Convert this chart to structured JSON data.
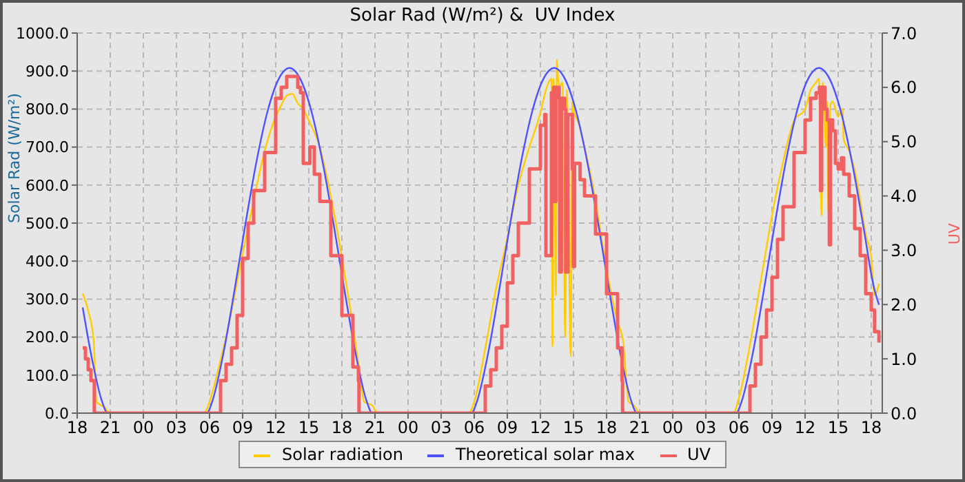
{
  "chart_data": {
    "type": "line",
    "title": "Solar Rad (W/m²) &  UV Index",
    "ylabel": "Solar Rad (W/m²)",
    "y2label": "UV",
    "xlim": [
      18,
      91
    ],
    "xticks": [
      {
        "value": 18,
        "label": "18"
      },
      {
        "value": 21,
        "label": "21"
      },
      {
        "value": 24,
        "label": "00"
      },
      {
        "value": 27,
        "label": "03"
      },
      {
        "value": 30,
        "label": "06"
      },
      {
        "value": 33,
        "label": "09"
      },
      {
        "value": 36,
        "label": "12"
      },
      {
        "value": 39,
        "label": "15"
      },
      {
        "value": 42,
        "label": "18"
      },
      {
        "value": 45,
        "label": "21"
      },
      {
        "value": 48,
        "label": "00"
      },
      {
        "value": 51,
        "label": "03"
      },
      {
        "value": 54,
        "label": "06"
      },
      {
        "value": 57,
        "label": "09"
      },
      {
        "value": 60,
        "label": "12"
      },
      {
        "value": 63,
        "label": "15"
      },
      {
        "value": 66,
        "label": "18"
      },
      {
        "value": 69,
        "label": "21"
      },
      {
        "value": 72,
        "label": "00"
      },
      {
        "value": 75,
        "label": "03"
      },
      {
        "value": 78,
        "label": "06"
      },
      {
        "value": 81,
        "label": "09"
      },
      {
        "value": 84,
        "label": "12"
      },
      {
        "value": 87,
        "label": "15"
      },
      {
        "value": 90,
        "label": "18"
      }
    ],
    "ylim": [
      0,
      1000
    ],
    "yticks": [
      {
        "value": 0,
        "label": "0.0"
      },
      {
        "value": 100,
        "label": "100.0"
      },
      {
        "value": 200,
        "label": "200.0"
      },
      {
        "value": 300,
        "label": "300.0"
      },
      {
        "value": 400,
        "label": "400.0"
      },
      {
        "value": 500,
        "label": "500.0"
      },
      {
        "value": 600,
        "label": "600.0"
      },
      {
        "value": 700,
        "label": "700.0"
      },
      {
        "value": 800,
        "label": "800.0"
      },
      {
        "value": 900,
        "label": "900.0"
      },
      {
        "value": 1000,
        "label": "1000.0"
      }
    ],
    "y2lim": [
      0,
      7
    ],
    "y2ticks": [
      {
        "value": 0,
        "label": "0.0"
      },
      {
        "value": 1,
        "label": "1.0"
      },
      {
        "value": 2,
        "label": "2.0"
      },
      {
        "value": 3,
        "label": "3.0"
      },
      {
        "value": 4,
        "label": "4.0"
      },
      {
        "value": 5,
        "label": "5.0"
      },
      {
        "value": 6,
        "label": "6.0"
      },
      {
        "value": 7,
        "label": "7.0"
      }
    ],
    "grid": true,
    "legend": "bottom",
    "series": [
      {
        "name": "Solar radiation",
        "color": "#ffcc00",
        "x": [
          18.5,
          19.0,
          19.5,
          19.75,
          20.5,
          21.0,
          29.5,
          30,
          30.5,
          31,
          31.5,
          32,
          33,
          34,
          35,
          36,
          36.5,
          37,
          37.5,
          38,
          38.5,
          39,
          40,
          41,
          42,
          43,
          43.75,
          44,
          44.75,
          45.25,
          53.5,
          54,
          55,
          56,
          57,
          58,
          59,
          60,
          60.5,
          60.75,
          61.0,
          61.1,
          61.2,
          61.4,
          61.5,
          61.6,
          61.8,
          62.0,
          62.25,
          62.4,
          62.75,
          62.9,
          63,
          63.5,
          64,
          65,
          66,
          67,
          67.5,
          68,
          68.5,
          69,
          77.5,
          78,
          79,
          80,
          81,
          82,
          83,
          84,
          84.5,
          85,
          85.25,
          85.5,
          85.6,
          85.9,
          86.0,
          86.1,
          86.3,
          86.5,
          87,
          87.4,
          87.5,
          88,
          88.5,
          89,
          89.5,
          90,
          90.3,
          90.7
        ],
        "values": [
          315,
          270,
          190,
          30,
          15,
          0,
          0,
          30,
          80,
          140,
          200,
          270,
          420,
          560,
          690,
          780,
          810,
          835,
          840,
          815,
          800,
          770,
          700,
          570,
          410,
          230,
          80,
          30,
          20,
          0,
          0,
          30,
          170,
          330,
          460,
          600,
          700,
          790,
          850,
          870,
          880,
          175,
          880,
          310,
          930,
          880,
          860,
          870,
          200,
          850,
          150,
          820,
          800,
          760,
          700,
          560,
          380,
          240,
          190,
          30,
          20,
          0,
          0,
          40,
          180,
          350,
          520,
          660,
          770,
          800,
          850,
          870,
          880,
          520,
          870,
          700,
          820,
          530,
          810,
          820,
          780,
          800,
          720,
          690,
          640,
          560,
          470,
          410,
          310,
          340
        ]
      },
      {
        "name": "Theoretical solar max",
        "color": "#5050ff",
        "x": [
          18.5,
          19.25,
          20.25,
          20.75,
          29.75,
          30.25,
          31.25,
          32.25,
          33.25,
          34.25,
          35.25,
          36.25,
          37.25,
          38.25,
          39.25,
          40.25,
          41.25,
          42.25,
          43.25,
          44.25,
          44.75,
          53.75,
          54.25,
          55.25,
          56.25,
          57.25,
          58.25,
          59.25,
          60.25,
          61.25,
          62.25,
          63.25,
          64.25,
          65.25,
          66.25,
          67.25,
          68.25,
          68.75,
          77.75,
          78.25,
          79.25,
          80.25,
          81.25,
          82.25,
          83.25,
          84.25,
          85.25,
          86.25,
          87.25,
          88.25,
          89.25,
          90.25,
          90.7
        ],
        "values": [
          278,
          156,
          31,
          0,
          0,
          31,
          156,
          321,
          497,
          661,
          793,
          878,
          908,
          878,
          793,
          661,
          497,
          321,
          156,
          31,
          0,
          0,
          31,
          156,
          321,
          497,
          661,
          793,
          878,
          908,
          878,
          793,
          661,
          497,
          321,
          156,
          31,
          0,
          0,
          31,
          156,
          321,
          497,
          661,
          793,
          878,
          908,
          878,
          793,
          661,
          497,
          330,
          285
        ]
      },
      {
        "name": "UV",
        "color": "#f06060",
        "type": "step",
        "axis": "y2",
        "x": [
          18.5,
          18.75,
          19.0,
          19.25,
          19.5,
          19.55,
          30.95,
          31,
          31.5,
          32,
          32.5,
          33,
          33.5,
          34,
          35,
          36,
          36.5,
          37,
          37.5,
          38,
          38.25,
          38.5,
          39,
          39.1,
          39.25,
          39.5,
          40,
          41,
          42,
          43,
          43.5,
          43.55,
          54.95,
          55,
          55.5,
          56,
          56.5,
          57,
          57.5,
          58,
          59,
          60,
          60.4,
          60.5,
          60.9,
          61.0,
          61.2,
          61.25,
          61.4,
          61.7,
          61.75,
          61.9,
          62.2,
          62.3,
          62.5,
          62.9,
          63.0,
          63.1,
          63.4,
          63.6,
          64,
          65,
          66,
          67,
          67.4,
          67.45,
          78.95,
          79,
          79.5,
          80,
          80.5,
          81,
          81.5,
          82,
          83,
          84,
          84.5,
          85,
          85.3,
          85.4,
          85.5,
          85.8,
          86,
          86.2,
          86.3,
          86.5,
          86.75,
          87,
          87.3,
          87.5,
          88,
          88.5,
          89,
          89.5,
          90,
          90.3,
          90.7
        ],
        "values": [
          1.2,
          1.0,
          0.8,
          0.6,
          0.6,
          0,
          0,
          0.6,
          0.9,
          1.2,
          1.8,
          2.85,
          3.5,
          4.1,
          4.8,
          5.8,
          6.0,
          6.2,
          6.2,
          6.0,
          5.9,
          4.6,
          4.6,
          4.9,
          4.9,
          4.4,
          3.9,
          2.9,
          1.8,
          0.85,
          0.6,
          0,
          0,
          0.5,
          0.8,
          1.2,
          1.6,
          2.4,
          2.9,
          3.5,
          4.5,
          5.3,
          5.5,
          2.9,
          2.9,
          5.9,
          6.0,
          3.9,
          6.0,
          5.8,
          2.6,
          5.8,
          5.6,
          2.6,
          5.5,
          4.5,
          2.7,
          4.6,
          4.6,
          4.3,
          4.0,
          3.3,
          2.2,
          1.2,
          0.6,
          0,
          0,
          0.5,
          0.9,
          1.4,
          1.9,
          2.5,
          3.2,
          3.8,
          4.8,
          5.4,
          5.8,
          5.9,
          6.0,
          4.1,
          6.0,
          5.6,
          5.4,
          3.1,
          5.4,
          5.2,
          4.6,
          4.5,
          4.7,
          4.4,
          4.0,
          3.4,
          2.9,
          2.2,
          1.9,
          1.5,
          1.3
        ]
      }
    ]
  }
}
